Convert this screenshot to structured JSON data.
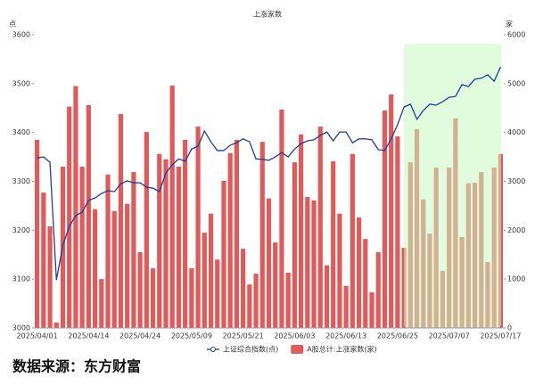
{
  "chart_data": {
    "type": "combo",
    "title": "上涨家数",
    "y_label": "点",
    "y2_label": "家",
    "categories": [
      "2025/04/01",
      null,
      null,
      null,
      null,
      null,
      null,
      null,
      "2025/04/14",
      null,
      null,
      null,
      null,
      null,
      null,
      null,
      "2025/04/24",
      null,
      null,
      null,
      null,
      null,
      null,
      null,
      "2025/05/09",
      null,
      null,
      null,
      null,
      null,
      null,
      null,
      "2025/05/21",
      null,
      null,
      null,
      null,
      null,
      null,
      null,
      "2025/06/03",
      null,
      null,
      null,
      null,
      null,
      null,
      null,
      "2025/06/13",
      null,
      null,
      null,
      null,
      null,
      null,
      null,
      "2025/06/25",
      null,
      null,
      null,
      null,
      null,
      null,
      null,
      "2025/07/07",
      null,
      null,
      null,
      null,
      null,
      null,
      null,
      "2025/07/17"
    ],
    "series": [
      {
        "name": "上证综合指数(点)",
        "type": "line",
        "axis": "y",
        "color": "#1f3d9c",
        "values": [
          3348,
          3350,
          3339,
          3098,
          3169,
          3208,
          3230,
          3237,
          3261,
          3266,
          3275,
          3281,
          3279,
          3295,
          3301,
          3297,
          3297,
          3288,
          3286,
          3279,
          3317,
          3334,
          3346,
          3341,
          3366,
          3372,
          3403,
          3381,
          3363,
          3363,
          3374,
          3379,
          3387,
          3381,
          3346,
          3345,
          3343,
          3350,
          3359,
          3350,
          3366,
          3377,
          3383,
          3385,
          3394,
          3401,
          3383,
          3401,
          3401,
          3379,
          3387,
          3387,
          3385,
          3365,
          3363,
          3387,
          3416,
          3452,
          3458,
          3427,
          3445,
          3458,
          3456,
          3463,
          3472,
          3474,
          3498,
          3494,
          3509,
          3511,
          3518,
          3505,
          3534
        ]
      },
      {
        "name": "A股总计:上涨家数(家)",
        "type": "bar",
        "axis": "y2",
        "color": "#e05a5a",
        "values": [
          3850,
          2770,
          2080,
          110,
          3300,
          4530,
          4950,
          3300,
          4560,
          2430,
          1000,
          3140,
          2390,
          4380,
          2540,
          3190,
          1550,
          4010,
          1220,
          3560,
          3450,
          4960,
          3300,
          3850,
          1220,
          4120,
          1950,
          2340,
          1400,
          3010,
          3580,
          3850,
          1620,
          890,
          1110,
          3810,
          2650,
          1750,
          4470,
          1130,
          3390,
          3960,
          2680,
          2610,
          4120,
          1280,
          3410,
          2340,
          860,
          3560,
          2260,
          1820,
          730,
          1550,
          4450,
          4780,
          3920,
          1640,
          3390,
          4070,
          2630,
          1930,
          3280,
          1170,
          3280,
          4290,
          1860,
          2960,
          2970,
          3190,
          1350,
          3280,
          3560
        ]
      }
    ],
    "ylim": [
      3000,
      3600
    ],
    "yticks": [
      3000,
      3100,
      3200,
      3300,
      3400,
      3500,
      3600
    ],
    "y2lim": [
      0,
      6000
    ],
    "y2ticks": [
      0,
      1000,
      2000,
      3000,
      4000,
      5000,
      6000
    ],
    "grid": false
  },
  "source": "数据来源：东方财富"
}
